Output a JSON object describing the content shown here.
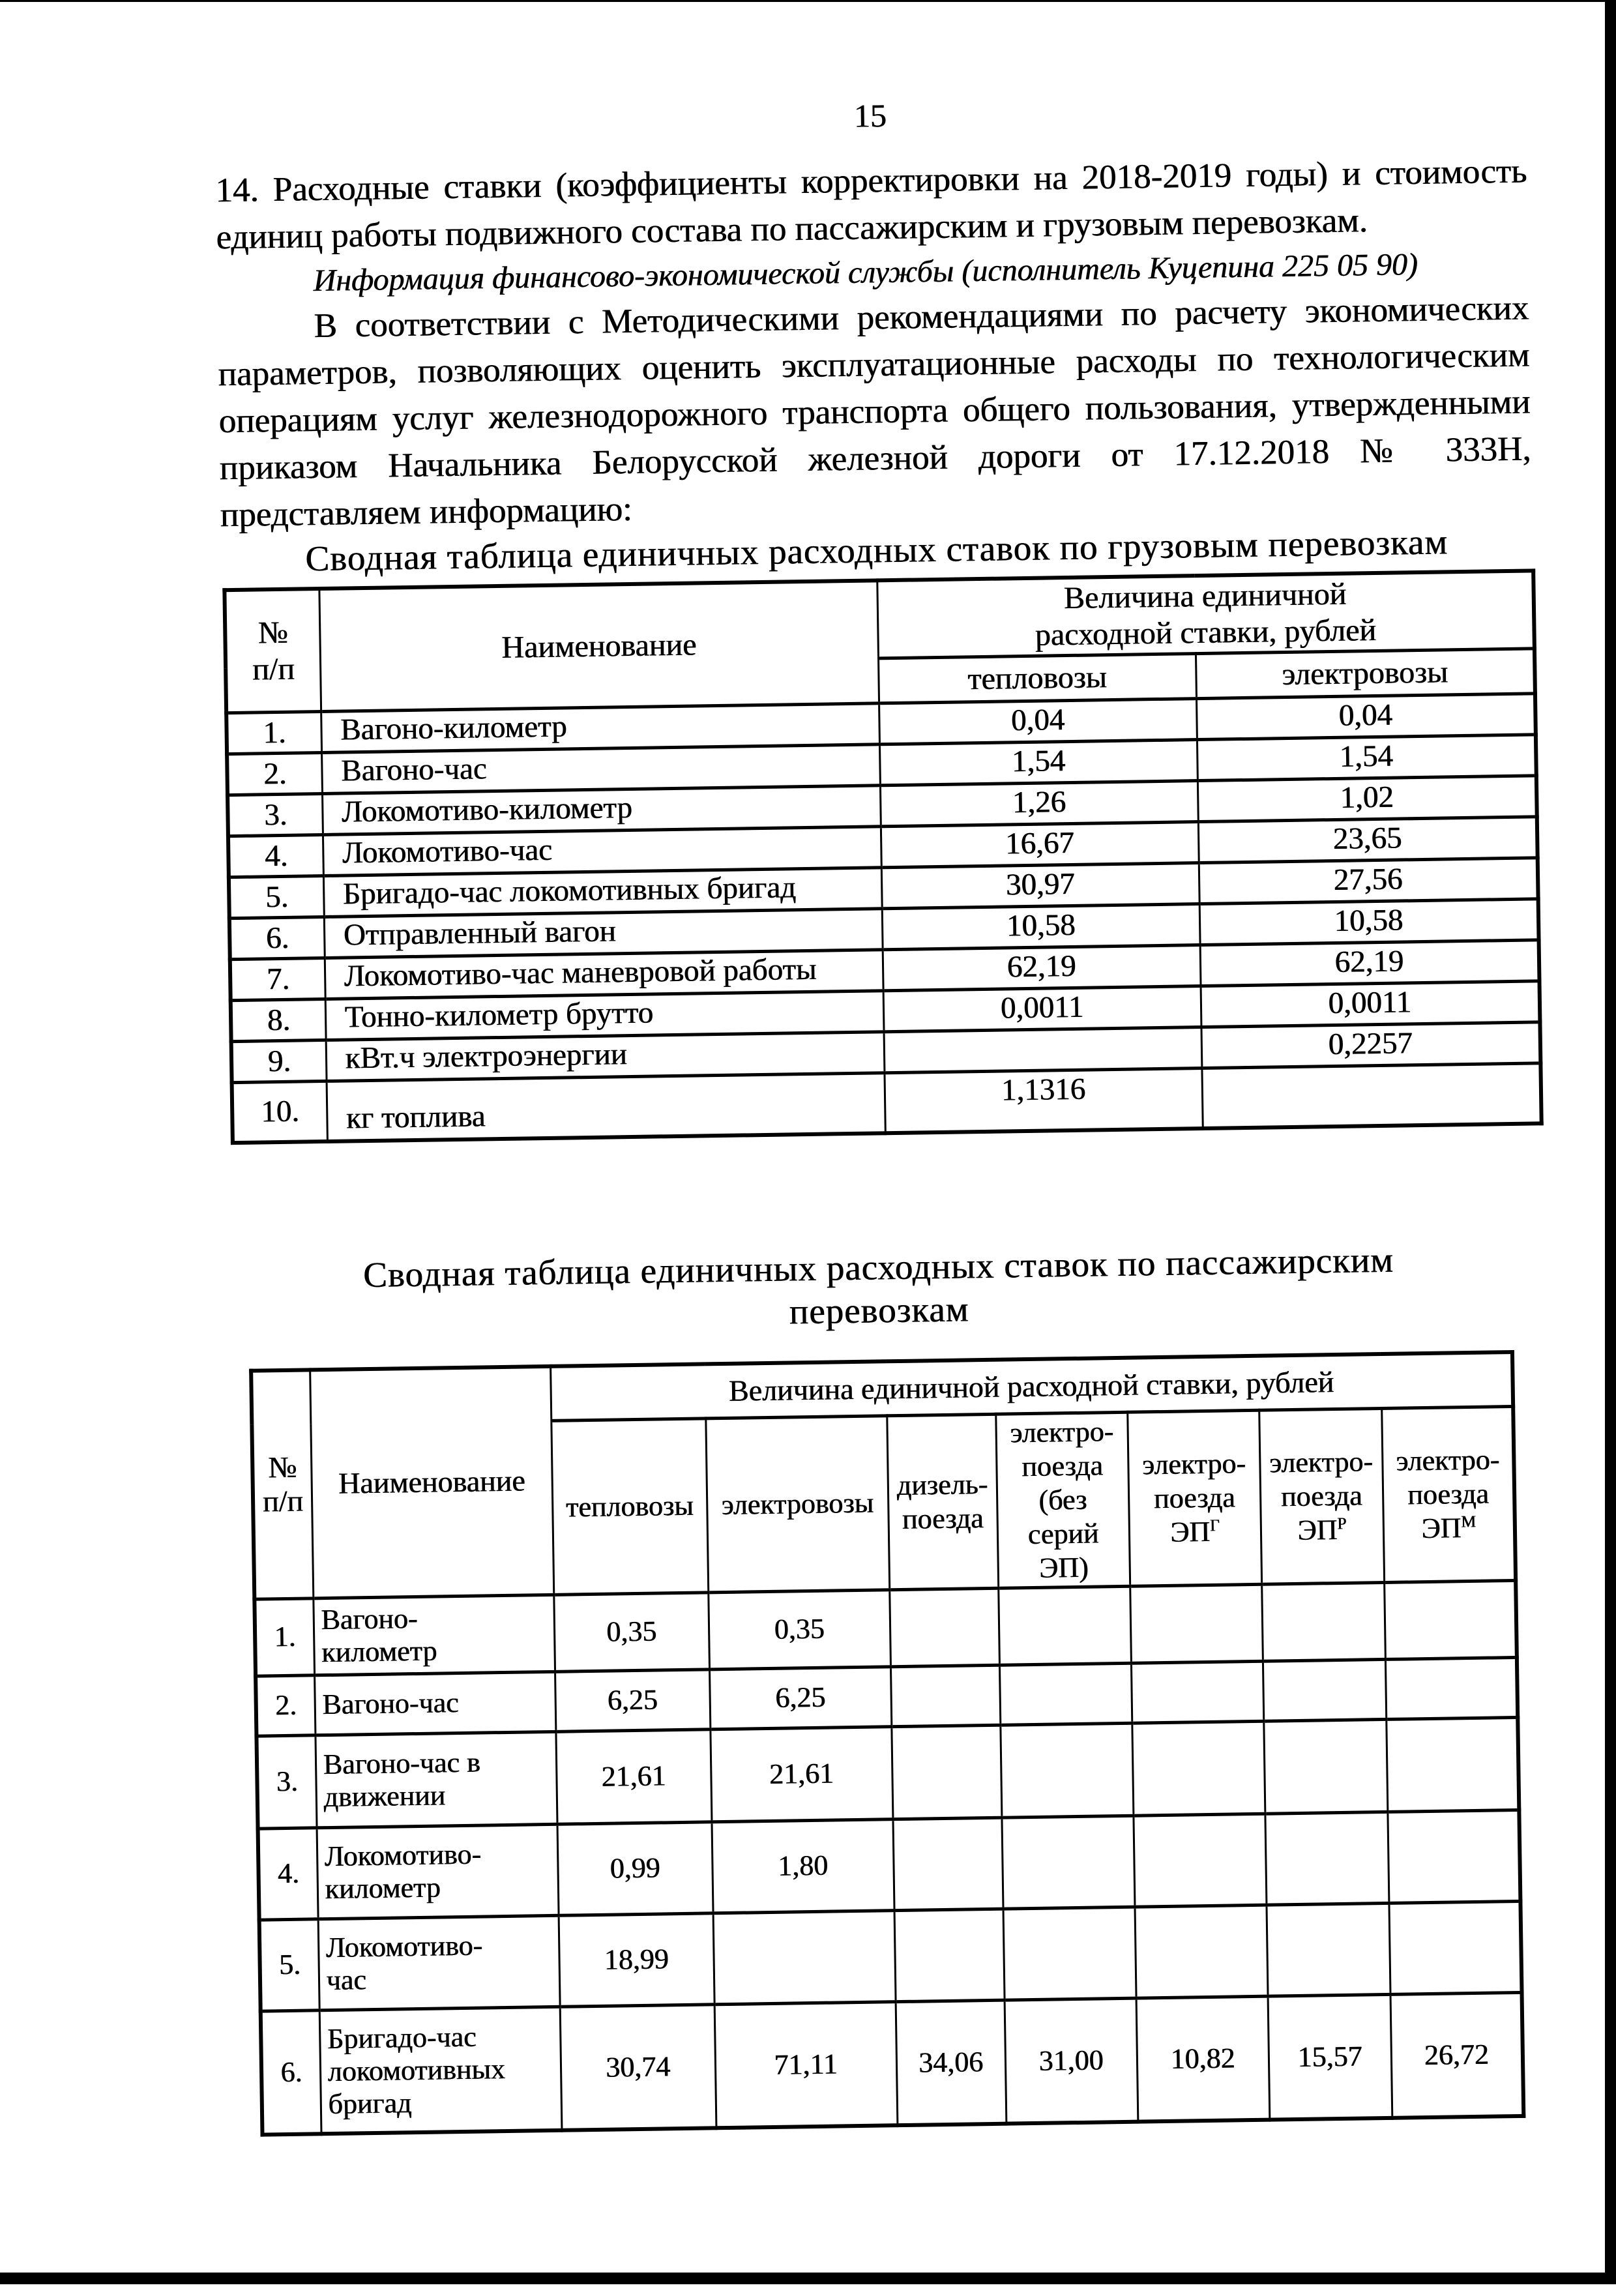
{
  "colors": {
    "ink": "#000000",
    "paper": "#ffffff"
  },
  "page": {
    "number": "15",
    "paragraph_1": "14. Расходные ставки (коэффициенты корректировки на 2018-2019 годы) и стоимость единиц работы подвижного состава по пассажирским и грузовым перевозкам.",
    "source_note": "Информация финансово-экономической службы (исполнитель Куцепина 225 05 90)",
    "paragraph_2": "В соответствии с Методическими рекомендациями по расчету экономических параметров, позволяющих оценить эксплуатационные расходы по технологическим операциям услуг железнодорожного транспорта общего пользования, утвержденными приказом Начальника Белорусской железной дороги от 17.12.2018 № 333Н, представляем информацию:"
  },
  "freight_table": {
    "title": "Сводная таблица единичных расходных ставок по грузовым перевозкам",
    "col_num": "№\nп/п",
    "col_name": "Наименование",
    "col_value_group": "Величина единичной\nрасходной ставки, рублей",
    "col_diesel": "тепловозы",
    "col_electric": "электровозы",
    "rows": [
      {
        "num": "1.",
        "name": "Вагоно-километр",
        "values": [
          "0,04",
          "0,04"
        ]
      },
      {
        "num": "2.",
        "name": "Вагоно-час",
        "values": [
          "1,54",
          "1,54"
        ]
      },
      {
        "num": "3.",
        "name": "Локомотиво-километр",
        "values": [
          "1,26",
          "1,02"
        ]
      },
      {
        "num": "4.",
        "name": "Локомотиво-час",
        "values": [
          "16,67",
          "23,65"
        ]
      },
      {
        "num": "5.",
        "name": "Бригадо-час локомотивных бригад",
        "values": [
          "30,97",
          "27,56"
        ]
      },
      {
        "num": "6.",
        "name": "Отправленный вагон",
        "values": [
          "10,58",
          "10,58"
        ]
      },
      {
        "num": "7.",
        "name": "Локомотиво-час маневровой работы",
        "values": [
          "62,19",
          "62,19"
        ]
      },
      {
        "num": "8.",
        "name": "Тонно-километр брутто",
        "values": [
          "0,0011",
          "0,0011"
        ]
      },
      {
        "num": "9.",
        "name": "кВт.ч электроэнергии",
        "values": [
          "",
          "0,2257"
        ]
      },
      {
        "num": "10.",
        "name": "кг топлива",
        "values": [
          "1,1316",
          ""
        ]
      }
    ]
  },
  "passenger_table": {
    "title": "Сводная таблица единичных расходных ставок по пассажирским\nперевозкам",
    "col_num": "№\nп/п",
    "col_name": "Наименование",
    "col_value_group": "Величина единичной расходной ставки, рублей",
    "columns": [
      {
        "text": "тепловозы",
        "sup": ""
      },
      {
        "text": "электровозы",
        "sup": ""
      },
      {
        "text": "дизель-\nпоезда",
        "sup": ""
      },
      {
        "text": "электро-\nпоезда\n(без\nсерий\nЭП)",
        "sup": ""
      },
      {
        "text": "электро-\nпоезда\nЭП",
        "sup": "Г"
      },
      {
        "text": "электро-\nпоезда\nЭП",
        "sup": "Р"
      },
      {
        "text": "электро-\nпоезда\nЭП",
        "sup": "М"
      }
    ],
    "rows": [
      {
        "num": "1.",
        "name": "Вагоно-\nкилометр",
        "values": [
          "0,35",
          "0,35",
          "",
          "",
          "",
          "",
          ""
        ]
      },
      {
        "num": "2.",
        "name": "Вагоно-час",
        "values": [
          "6,25",
          "6,25",
          "",
          "",
          "",
          "",
          ""
        ]
      },
      {
        "num": "3.",
        "name": "Вагоно-час в\nдвижении",
        "values": [
          "21,61",
          "21,61",
          "",
          "",
          "",
          "",
          ""
        ]
      },
      {
        "num": "4.",
        "name": "Локомотиво-\nкилометр",
        "values": [
          "0,99",
          "1,80",
          "",
          "",
          "",
          "",
          ""
        ]
      },
      {
        "num": "5.",
        "name": "Локомотиво-\nчас",
        "values": [
          "18,99",
          "",
          "",
          "",
          "",
          "",
          ""
        ]
      },
      {
        "num": "6.",
        "name": "Бригадо-час\nлокомотивных\nбригад",
        "values": [
          "30,74",
          "71,11",
          "34,06",
          "31,00",
          "10,82",
          "15,57",
          "26,72"
        ]
      }
    ]
  }
}
